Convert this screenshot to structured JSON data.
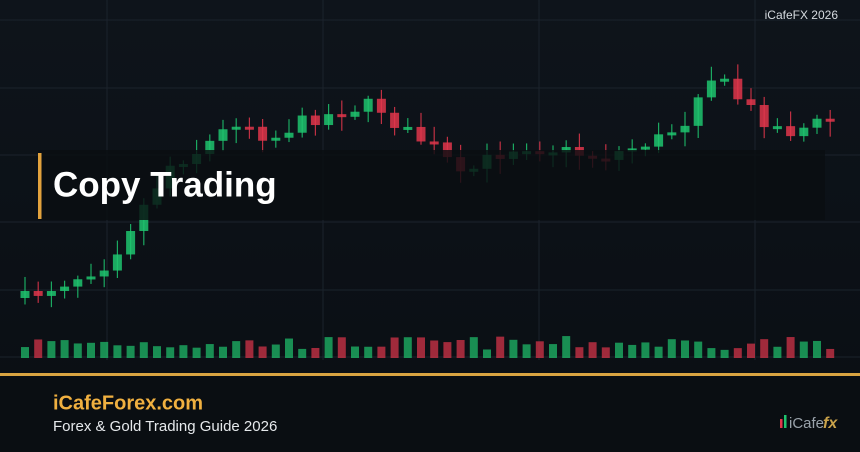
{
  "watermark": "iCafeFX 2026",
  "title": "Copy Trading",
  "footer": {
    "site": "iCafeForex.com",
    "subtitle": "Forex & Gold Trading Guide 2026"
  },
  "logo": {
    "brand": "iCafe",
    "accent": "fx"
  }
}
